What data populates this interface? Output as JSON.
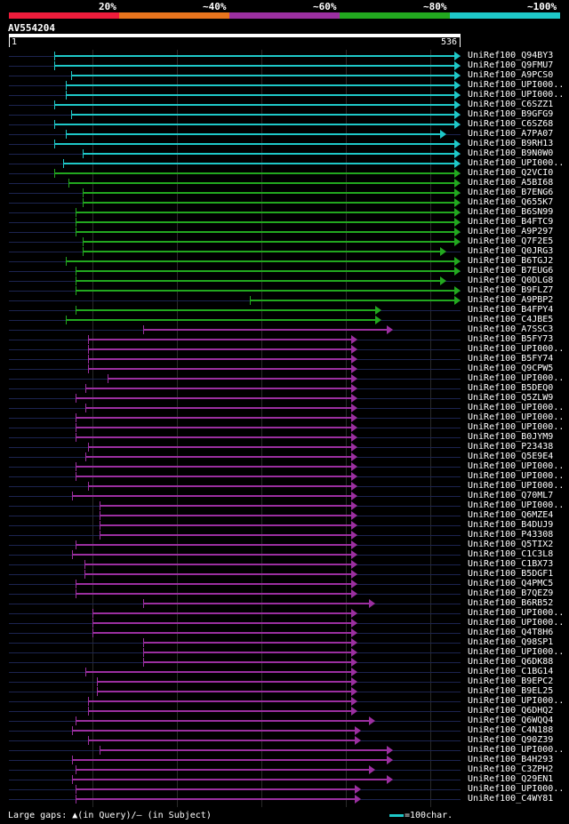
{
  "legend": {
    "segments": [
      {
        "label": "20%",
        "color": "#ee1c3b"
      },
      {
        "label": "~40%",
        "color": "#e8741d"
      },
      {
        "label": "~60%",
        "color": "#9b2fa0"
      },
      {
        "label": "~80%",
        "color": "#22a81f"
      },
      {
        "label": "~100%",
        "color": "#1ec8c8"
      }
    ]
  },
  "query": {
    "name": "AV554204",
    "start_label": "1",
    "end_label": "536",
    "length": 536
  },
  "hits": [
    {
      "label": "UniRef100_Q94BY3",
      "start": 55,
      "end": 536,
      "color": "#1ec8c8"
    },
    {
      "label": "UniRef100_Q9FMU7",
      "start": 55,
      "end": 536,
      "color": "#1ec8c8"
    },
    {
      "label": "UniRef100_A9PCS0",
      "start": 75,
      "end": 536,
      "color": "#1ec8c8"
    },
    {
      "label": "UniRef100_UPI000..",
      "start": 68,
      "end": 536,
      "color": "#1ec8c8"
    },
    {
      "label": "UniRef100_UPI000..",
      "start": 68,
      "end": 536,
      "color": "#1ec8c8"
    },
    {
      "label": "UniRef100_C6SZZ1",
      "start": 55,
      "end": 536,
      "color": "#1ec8c8"
    },
    {
      "label": "UniRef100_B9GFG9",
      "start": 75,
      "end": 536,
      "color": "#1ec8c8"
    },
    {
      "label": "UniRef100_C6SZ68",
      "start": 55,
      "end": 536,
      "color": "#1ec8c8"
    },
    {
      "label": "UniRef100_A7PA07",
      "start": 68,
      "end": 519,
      "color": "#1ec8c8"
    },
    {
      "label": "UniRef100_B9RH13",
      "start": 55,
      "end": 536,
      "color": "#1ec8c8"
    },
    {
      "label": "UniRef100_B9N0W0",
      "start": 88,
      "end": 536,
      "color": "#1ec8c8"
    },
    {
      "label": "UniRef100_UPI000..",
      "start": 65,
      "end": 536,
      "color": "#1ec8c8"
    },
    {
      "label": "UniRef100_Q2VCI0",
      "start": 55,
      "end": 536,
      "color": "#22a81f"
    },
    {
      "label": "UniRef100_A5BI68",
      "start": 72,
      "end": 536,
      "color": "#22a81f"
    },
    {
      "label": "UniRef100_B7ENG6",
      "start": 88,
      "end": 536,
      "color": "#22a81f"
    },
    {
      "label": "UniRef100_Q655K7",
      "start": 88,
      "end": 536,
      "color": "#22a81f"
    },
    {
      "label": "UniRef100_B6SN99",
      "start": 80,
      "end": 536,
      "color": "#22a81f"
    },
    {
      "label": "UniRef100_B4FTC9",
      "start": 80,
      "end": 536,
      "color": "#22a81f"
    },
    {
      "label": "UniRef100_A9P297",
      "start": 80,
      "end": 536,
      "color": "#22a81f"
    },
    {
      "label": "UniRef100_Q7F2E5",
      "start": 88,
      "end": 536,
      "color": "#22a81f"
    },
    {
      "label": "UniRef100_Q0JRG3",
      "start": 88,
      "end": 519,
      "color": "#22a81f"
    },
    {
      "label": "UniRef100_B6TGJ2",
      "start": 68,
      "end": 536,
      "color": "#22a81f"
    },
    {
      "label": "UniRef100_B7EUG6",
      "start": 80,
      "end": 536,
      "color": "#22a81f"
    },
    {
      "label": "UniRef100_Q0DLG8",
      "start": 80,
      "end": 519,
      "color": "#22a81f"
    },
    {
      "label": "UniRef100_B9FLZ7",
      "start": 80,
      "end": 536,
      "color": "#22a81f"
    },
    {
      "label": "UniRef100_A9PBP2",
      "start": 286,
      "end": 536,
      "color": "#22a81f"
    },
    {
      "label": "UniRef100_B4FPY4",
      "start": 80,
      "end": 442,
      "color": "#22a81f"
    },
    {
      "label": "UniRef100_C4JBE5",
      "start": 68,
      "end": 442,
      "color": "#22a81f"
    },
    {
      "label": "UniRef100_A7SSC3",
      "start": 160,
      "end": 456,
      "color": "#9b2fa0"
    },
    {
      "label": "UniRef100_B5FY73",
      "start": 95,
      "end": 414,
      "color": "#9b2fa0"
    },
    {
      "label": "UniRef100_UPI000..",
      "start": 95,
      "end": 414,
      "color": "#9b2fa0"
    },
    {
      "label": "UniRef100_B5FY74",
      "start": 95,
      "end": 414,
      "color": "#9b2fa0"
    },
    {
      "label": "UniRef100_Q9CPW5",
      "start": 95,
      "end": 414,
      "color": "#9b2fa0"
    },
    {
      "label": "UniRef100_UPI000..",
      "start": 118,
      "end": 414,
      "color": "#9b2fa0"
    },
    {
      "label": "UniRef100_B5DEQ0",
      "start": 92,
      "end": 414,
      "color": "#9b2fa0"
    },
    {
      "label": "UniRef100_Q5ZLW9",
      "start": 80,
      "end": 414,
      "color": "#9b2fa0"
    },
    {
      "label": "UniRef100_UPI000..",
      "start": 92,
      "end": 414,
      "color": "#9b2fa0"
    },
    {
      "label": "UniRef100_UPI000..",
      "start": 80,
      "end": 414,
      "color": "#9b2fa0"
    },
    {
      "label": "UniRef100_UPI000..",
      "start": 80,
      "end": 414,
      "color": "#9b2fa0"
    },
    {
      "label": "UniRef100_B0JYM9",
      "start": 80,
      "end": 414,
      "color": "#9b2fa0"
    },
    {
      "label": "UniRef100_P23438",
      "start": 95,
      "end": 414,
      "color": "#9b2fa0"
    },
    {
      "label": "UniRef100_Q5E9E4",
      "start": 92,
      "end": 414,
      "color": "#9b2fa0"
    },
    {
      "label": "UniRef100_UPI000..",
      "start": 80,
      "end": 414,
      "color": "#9b2fa0"
    },
    {
      "label": "UniRef100_UPI000..",
      "start": 80,
      "end": 414,
      "color": "#9b2fa0"
    },
    {
      "label": "UniRef100_UPI000..",
      "start": 95,
      "end": 414,
      "color": "#9b2fa0"
    },
    {
      "label": "UniRef100_Q70ML7",
      "start": 76,
      "end": 414,
      "color": "#9b2fa0"
    },
    {
      "label": "UniRef100_UPI000..",
      "start": 108,
      "end": 414,
      "color": "#9b2fa0"
    },
    {
      "label": "UniRef100_Q6MZE4",
      "start": 108,
      "end": 414,
      "color": "#9b2fa0"
    },
    {
      "label": "UniRef100_B4DUJ9",
      "start": 108,
      "end": 414,
      "color": "#9b2fa0"
    },
    {
      "label": "UniRef100_P43308",
      "start": 108,
      "end": 414,
      "color": "#9b2fa0"
    },
    {
      "label": "UniRef100_Q5TIX2",
      "start": 80,
      "end": 414,
      "color": "#9b2fa0"
    },
    {
      "label": "UniRef100_C1C3L8",
      "start": 76,
      "end": 414,
      "color": "#9b2fa0"
    },
    {
      "label": "UniRef100_C1BX73",
      "start": 90,
      "end": 414,
      "color": "#9b2fa0"
    },
    {
      "label": "UniRef100_B5DGF1",
      "start": 90,
      "end": 414,
      "color": "#9b2fa0"
    },
    {
      "label": "UniRef100_Q4PMC5",
      "start": 80,
      "end": 414,
      "color": "#9b2fa0"
    },
    {
      "label": "UniRef100_B7QEZ9",
      "start": 80,
      "end": 414,
      "color": "#9b2fa0"
    },
    {
      "label": "UniRef100_B6RB52",
      "start": 160,
      "end": 435,
      "color": "#9b2fa0"
    },
    {
      "label": "UniRef100_UPI000..",
      "start": 100,
      "end": 414,
      "color": "#9b2fa0"
    },
    {
      "label": "UniRef100_UPI000..",
      "start": 100,
      "end": 414,
      "color": "#9b2fa0"
    },
    {
      "label": "UniRef100_Q4T8H6",
      "start": 100,
      "end": 414,
      "color": "#9b2fa0"
    },
    {
      "label": "UniRef100_Q98SP1",
      "start": 160,
      "end": 414,
      "color": "#9b2fa0"
    },
    {
      "label": "UniRef100_UPI000..",
      "start": 160,
      "end": 414,
      "color": "#9b2fa0"
    },
    {
      "label": "UniRef100_Q6DK88",
      "start": 160,
      "end": 414,
      "color": "#9b2fa0"
    },
    {
      "label": "UniRef100_C1BG14",
      "start": 92,
      "end": 414,
      "color": "#9b2fa0"
    },
    {
      "label": "UniRef100_B9EPC2",
      "start": 105,
      "end": 414,
      "color": "#9b2fa0"
    },
    {
      "label": "UniRef100_B9EL25",
      "start": 105,
      "end": 414,
      "color": "#9b2fa0"
    },
    {
      "label": "UniRef100_UPI000..",
      "start": 95,
      "end": 414,
      "color": "#9b2fa0"
    },
    {
      "label": "UniRef100_Q6DHQ2",
      "start": 95,
      "end": 414,
      "color": "#9b2fa0"
    },
    {
      "label": "UniRef100_Q6WQQ4",
      "start": 80,
      "end": 435,
      "color": "#9b2fa0"
    },
    {
      "label": "UniRef100_C4N188",
      "start": 76,
      "end": 418,
      "color": "#9b2fa0"
    },
    {
      "label": "UniRef100_Q90Z39",
      "start": 95,
      "end": 418,
      "color": "#9b2fa0"
    },
    {
      "label": "UniRef100_UPI000..",
      "start": 108,
      "end": 456,
      "color": "#9b2fa0"
    },
    {
      "label": "UniRef100_B4H293",
      "start": 76,
      "end": 456,
      "color": "#9b2fa0"
    },
    {
      "label": "UniRef100_C3ZPH2",
      "start": 80,
      "end": 435,
      "color": "#9b2fa0"
    },
    {
      "label": "UniRef100_Q29EN1",
      "start": 76,
      "end": 456,
      "color": "#9b2fa0"
    },
    {
      "label": "UniRef100_UPI000..",
      "start": 80,
      "end": 418,
      "color": "#9b2fa0"
    },
    {
      "label": "UniRef100_C4WY81",
      "start": 80,
      "end": 418,
      "color": "#9b2fa0"
    }
  ],
  "footer": {
    "gaps_prefix": "Large gaps:",
    "gaps_query": "(in Query)/",
    "gaps_dash": "—",
    "gaps_subject": "(in Subject)",
    "scale_label": "=100char."
  }
}
